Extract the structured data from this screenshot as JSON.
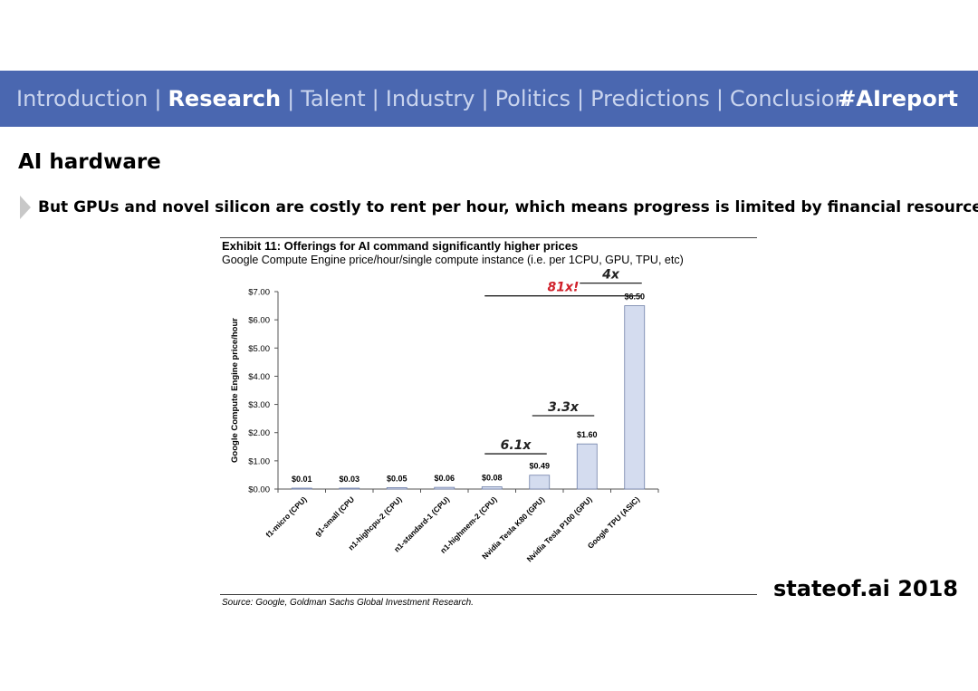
{
  "nav": {
    "items": [
      {
        "label": "Introduction",
        "active": false
      },
      {
        "label": "Research",
        "active": true
      },
      {
        "label": "Talent",
        "active": false
      },
      {
        "label": "Industry",
        "active": false
      },
      {
        "label": "Politics",
        "active": false
      },
      {
        "label": "Predictions",
        "active": false
      },
      {
        "label": "Conclusion",
        "active": false
      }
    ],
    "separator": "|",
    "hashtag": "#AIreport"
  },
  "slide": {
    "title": "AI hardware",
    "bullet": "But GPUs and novel silicon are costly to rent per hour, which means progress is limited by financial resources"
  },
  "exhibit": {
    "title": "Exhibit 11: Offerings for AI command significantly higher prices",
    "subtitle": "Google Compute Engine price/hour/single compute instance (i.e. per 1CPU, GPU, TPU, etc)",
    "source": "Source: Google, Goldman Sachs Global Investment Research."
  },
  "chart_data": {
    "type": "bar",
    "categories": [
      "f1-micro (CPU)",
      "g1-small (CPU",
      "n1-highcpu-2 (CPU)",
      "n1-standard-1 (CPU)",
      "n1-highmem-2 (CPU)",
      "Nvidia Tesla K80 (GPU)",
      "Nvidia Tesla P100 (GPU)",
      "Google TPU (ASIC)"
    ],
    "values": [
      0.01,
      0.03,
      0.05,
      0.06,
      0.08,
      0.49,
      1.6,
      6.5
    ],
    "value_labels": [
      "$0.01",
      "$0.03",
      "$0.05",
      "$0.06",
      "$0.08",
      "$0.49",
      "$1.60",
      "$6.50"
    ],
    "ylabel": "Google Compute Engine price/hour",
    "xlabel": "",
    "ylim": [
      0,
      7
    ],
    "yticks": [
      0,
      1,
      2,
      3,
      4,
      5,
      6,
      7
    ],
    "ytick_labels": [
      "$0.00",
      "$1.00",
      "$2.00",
      "$3.00",
      "$4.00",
      "$5.00",
      "$6.00",
      "$7.00"
    ],
    "annotations": [
      {
        "text": "6.1x",
        "from_index": 4,
        "to_index": 5,
        "level": 1.25,
        "color": "#222222"
      },
      {
        "text": "3.3x",
        "from_index": 5,
        "to_index": 6,
        "level": 2.6,
        "color": "#222222"
      },
      {
        "text": "4x",
        "from_index": 6,
        "to_index": 7,
        "level": 7.3,
        "color": "#222222"
      },
      {
        "text": "81x!",
        "from_index": 4,
        "to_index": 7,
        "level": 6.85,
        "color": "#d0202a"
      }
    ],
    "bar_color": "#d4dcef",
    "bar_edge_color": "#6f7fa8"
  },
  "footer": {
    "brand": "stateof.ai 2018"
  }
}
